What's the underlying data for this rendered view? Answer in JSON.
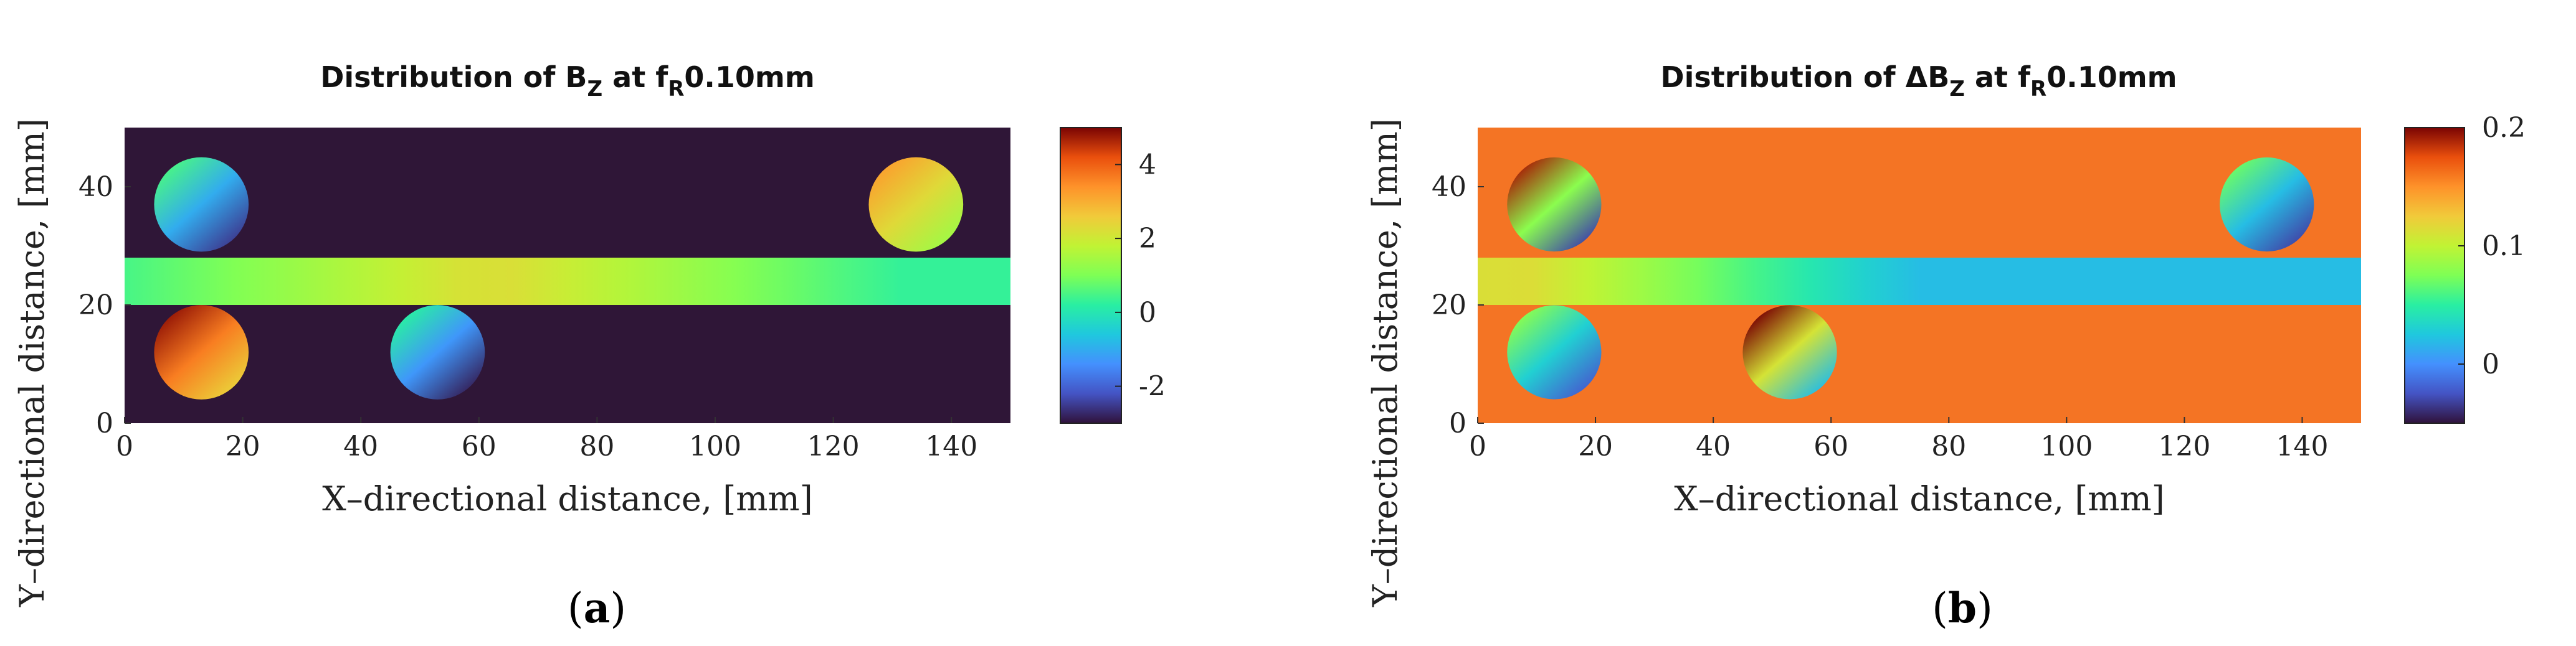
{
  "chart_data": [
    {
      "type": "heatmap",
      "title_prefix": "Distribution of ",
      "title_symbol": "B",
      "title_symbol_sub": "Z",
      "title_mid": " at f",
      "title_mid_sub": "R",
      "title_suffix": "0.10mm",
      "xlabel": "X–directional distance, [mm]",
      "ylabel": "Y–directional distance, [mm]",
      "xlim": [
        0,
        150
      ],
      "ylim": [
        0,
        50
      ],
      "xticks": [
        0,
        20,
        40,
        60,
        80,
        100,
        120,
        140
      ],
      "yticks": [
        0,
        20,
        40
      ],
      "colorbar": {
        "ticks": [
          -2,
          0,
          2,
          4
        ],
        "range": [
          -3,
          5
        ],
        "colormap": "turbo"
      },
      "background_value": "#2f1637",
      "strip": {
        "y_range": [
          20,
          28
        ],
        "x_range": [
          0,
          150
        ],
        "value_low": 0.3,
        "value_high": 2.3,
        "peak_x": 62
      },
      "circles": [
        {
          "cx": 13,
          "cy": 37,
          "r": 8,
          "value_min": -2.5,
          "value_max": 0.5
        },
        {
          "cx": 13,
          "cy": 12,
          "r": 8,
          "value_min": 2.5,
          "value_max": 4.8
        },
        {
          "cx": 53,
          "cy": 12,
          "r": 8,
          "value_min": -2.8,
          "value_max": 0.2
        },
        {
          "cx": 134,
          "cy": 37,
          "r": 8,
          "value_min": 1.4,
          "value_max": 3.2
        }
      ],
      "caption": "a"
    },
    {
      "type": "heatmap",
      "title_prefix": "Distribution of ",
      "title_symbol": "ΔB",
      "title_symbol_sub": "Z",
      "title_mid": " at f",
      "title_mid_sub": "R",
      "title_suffix": "0.10mm",
      "xlabel": "X–directional distance, [mm]",
      "ylabel": "Y–directional distance, [mm]",
      "xlim": [
        0,
        150
      ],
      "ylim": [
        0,
        50
      ],
      "xticks": [
        0,
        20,
        40,
        60,
        80,
        100,
        120,
        140
      ],
      "yticks": [
        0,
        20,
        40
      ],
      "colorbar": {
        "ticks": [
          0,
          0.1,
          0.2
        ],
        "range": [
          -0.05,
          0.2
        ],
        "colormap": "turbo"
      },
      "background_value": "#f47424",
      "strip": {
        "y_range": [
          20,
          28
        ],
        "x_range": [
          0,
          150
        ],
        "value_low": 0.02,
        "value_high": 0.12,
        "peak_x": 5
      },
      "circles": [
        {
          "cx": 13,
          "cy": 37,
          "r": 8,
          "value_min": -0.03,
          "value_max": 0.19
        },
        {
          "cx": 13,
          "cy": 12,
          "r": 8,
          "value_min": -0.02,
          "value_max": 0.08
        },
        {
          "cx": 53,
          "cy": 12,
          "r": 8,
          "value_min": 0.02,
          "value_max": 0.2
        },
        {
          "cx": 134,
          "cy": 37,
          "r": 8,
          "value_min": -0.03,
          "value_max": 0.07
        }
      ],
      "caption": "b"
    }
  ]
}
